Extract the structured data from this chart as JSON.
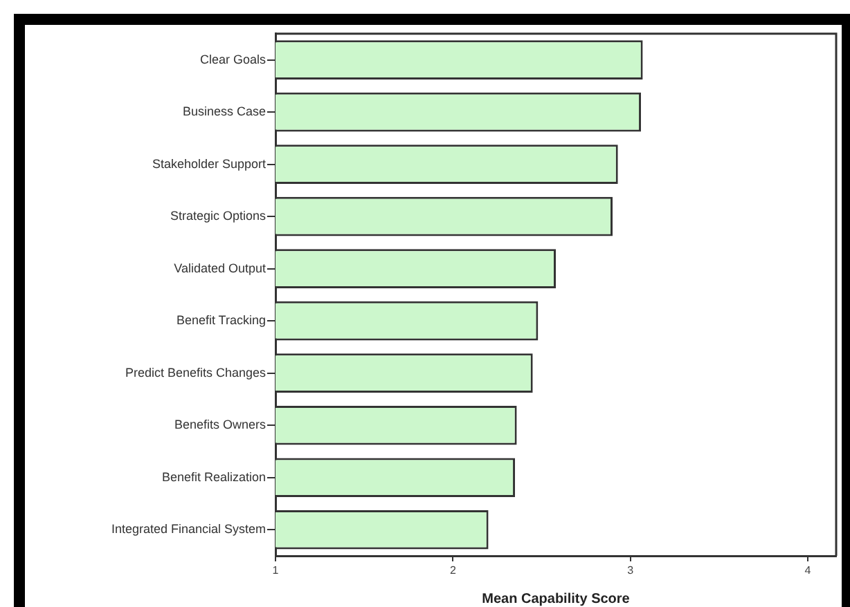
{
  "chart_data": {
    "type": "bar",
    "orientation": "horizontal",
    "xlabel": "Mean Capability Score",
    "categories": [
      "Clear Goals",
      "Business Case",
      "Stakeholder Support",
      "Strategic Options",
      "Validated Output",
      "Benefit Tracking",
      "Predict Benefits Changes",
      "Benefits Owners",
      "Benefit Realization",
      "Integrated Financial System"
    ],
    "values": [
      3.07,
      3.06,
      2.93,
      2.9,
      2.58,
      2.48,
      2.45,
      2.36,
      2.35,
      2.2
    ],
    "color": "#ccf7cc",
    "xlim": [
      1,
      4.16
    ],
    "xticks": [
      1,
      2,
      3,
      4
    ],
    "grid": false,
    "legend": false
  }
}
